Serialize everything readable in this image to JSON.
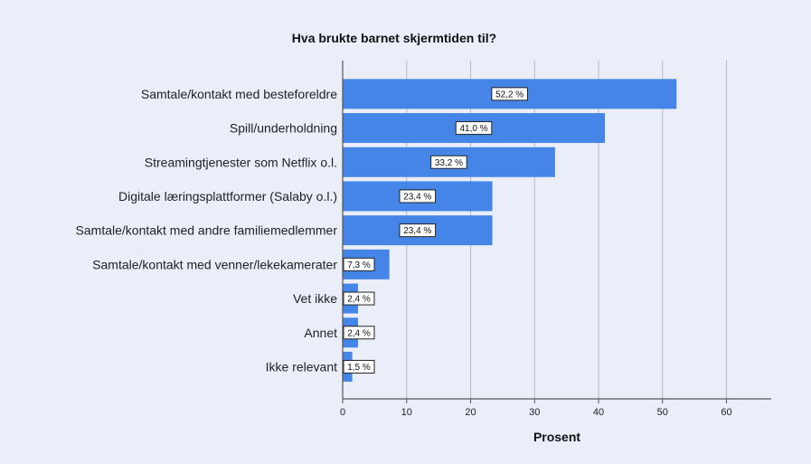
{
  "chart_data": {
    "type": "bar",
    "orientation": "horizontal",
    "title": "Hva brukte barnet skjermtiden til?",
    "xlabel": "Prosent",
    "ylabel": "",
    "xlim": [
      0,
      67
    ],
    "xticks": [
      0,
      10,
      20,
      30,
      40,
      50,
      60
    ],
    "grid": true,
    "bar_color": "#4585e8",
    "categories": [
      "Samtale/kontakt med besteforeldre",
      "Spill/underholdning",
      "Streamingtjenester som Netflix o.l.",
      "Digitale læringsplattformer (Salaby o.l.)",
      "Samtale/kontakt med andre familiemedlemmer",
      "Samtale/kontakt med venner/lekekamerater",
      "Vet ikke",
      "Annet",
      "Ikke relevant"
    ],
    "values": [
      52.2,
      41.0,
      33.2,
      23.4,
      23.4,
      7.3,
      2.4,
      2.4,
      1.5
    ],
    "data_labels": [
      "52,2 %",
      "41,0 %",
      "33,2 %",
      "23,4 %",
      "23,4 %",
      "7,3 %",
      "2,4 %",
      "2,4 %",
      "1,5 %"
    ]
  }
}
